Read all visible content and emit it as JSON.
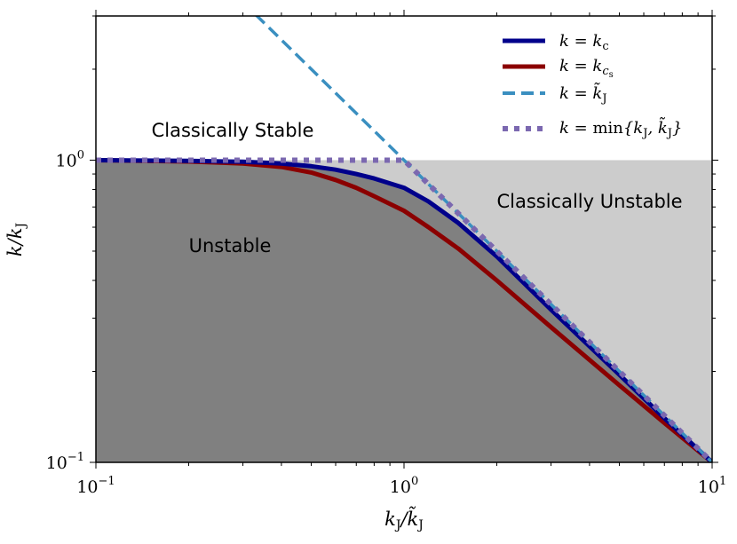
{
  "chart_data": {
    "type": "line",
    "xscale": "log",
    "yscale": "log",
    "xlim": [
      0.1,
      10
    ],
    "ylim": [
      0.1,
      3.0
    ],
    "xlabel": "k_J/k̃_J",
    "ylabel": "k/k_J",
    "xticks": [
      {
        "value": 0.1,
        "base": "10",
        "exp": "−1"
      },
      {
        "value": 1,
        "base": "10",
        "exp": "0"
      },
      {
        "value": 10,
        "base": "10",
        "exp": "1"
      }
    ],
    "yticks": [
      {
        "value": 0.1,
        "base": "10",
        "exp": "−1"
      },
      {
        "value": 1,
        "base": "10",
        "exp": "0"
      }
    ],
    "regions": [
      {
        "name": "Unstable",
        "label": "Unstable",
        "color": "#808080"
      },
      {
        "name": "Classically Unstable",
        "label": "Classically Unstable",
        "color": "#cccccc"
      },
      {
        "name": "Classically Stable",
        "label": "Classically Stable",
        "color": "#ffffff"
      }
    ],
    "series": [
      {
        "name": "k = k_c",
        "label": "k = k_c",
        "color": "#00008b",
        "style": "solid",
        "x": [
          0.1,
          0.2,
          0.3,
          0.4,
          0.5,
          0.6,
          0.7,
          0.8,
          1.0,
          1.2,
          1.5,
          2.0,
          3.0,
          5.0,
          7.0,
          10.0
        ],
        "y": [
          1.0,
          0.995,
          0.988,
          0.975,
          0.955,
          0.93,
          0.9,
          0.87,
          0.81,
          0.73,
          0.62,
          0.48,
          0.32,
          0.195,
          0.14,
          0.1
        ]
      },
      {
        "name": "k = k_cs",
        "label": "k = k_cs",
        "color": "#8b0000",
        "style": "solid",
        "x": [
          0.1,
          0.2,
          0.3,
          0.4,
          0.5,
          0.6,
          0.7,
          0.8,
          1.0,
          1.2,
          1.5,
          2.0,
          3.0,
          5.0,
          7.0,
          10.0
        ],
        "y": [
          1.0,
          0.99,
          0.975,
          0.95,
          0.91,
          0.86,
          0.81,
          0.76,
          0.68,
          0.6,
          0.51,
          0.4,
          0.28,
          0.18,
          0.135,
          0.1
        ]
      },
      {
        "name": "k = k̃_J",
        "label": "k = k̃_J",
        "color": "#3a8fc0",
        "style": "dashed",
        "x": [
          0.1,
          10.0
        ],
        "y": [
          10.0,
          0.1
        ]
      },
      {
        "name": "k = min{k_J, k̃_J}",
        "label": "k = min{k_J, k̃_J}",
        "color": "#7b68b0",
        "style": "dotted",
        "x": [
          0.1,
          1.0,
          10.0
        ],
        "y": [
          1.0,
          1.0,
          0.1
        ]
      }
    ],
    "legend": {
      "position": "top-right"
    }
  }
}
